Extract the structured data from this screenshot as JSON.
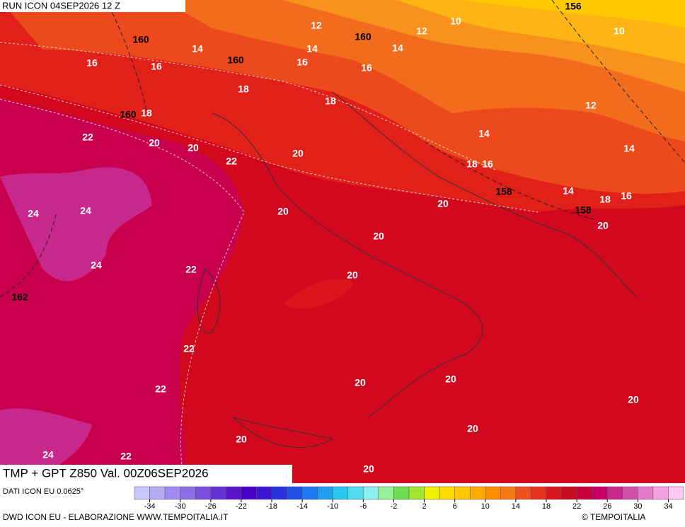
{
  "header": {
    "run": "RUN ICON 04SEP2026 12 Z"
  },
  "map": {
    "isotherm_labels": [
      "12",
      "10",
      "10",
      "12",
      "14",
      "14",
      "14",
      "16",
      "16",
      "16",
      "16",
      "18",
      "18",
      "12",
      "18",
      "14",
      "14",
      "22",
      "20",
      "20",
      "20",
      "22",
      "18",
      "16",
      "14",
      "16",
      "18",
      "20",
      "24",
      "24",
      "20",
      "20",
      "20",
      "24",
      "22",
      "20",
      "22",
      "20",
      "20",
      "22",
      "20",
      "20",
      "20",
      "24",
      "22",
      "20"
    ],
    "isoheight_labels": [
      "160",
      "156",
      "160",
      "160",
      "160",
      "158",
      "158",
      "162"
    ]
  },
  "footer": {
    "title": "TMP + GPT Z850 Val. 00Z06SEP2026",
    "source": "DATI ICON EU 0.0625°",
    "credit": "DWD ICON EU - ELABORAZIONE WWW.TEMPOITALIA.IT",
    "copyright": "© TEMPOITALIA"
  },
  "legend": {
    "ticks": [
      -34,
      -30,
      -26,
      -22,
      -18,
      -14,
      -10,
      -6,
      -2,
      2,
      6,
      10,
      14,
      18,
      22,
      26,
      30,
      34
    ],
    "colors": [
      "#c8c8ff",
      "#b4aaf5",
      "#a08cf0",
      "#8c6ee6",
      "#7850dc",
      "#6432d2",
      "#5a14c8",
      "#4600c8",
      "#3c14d2",
      "#2832dc",
      "#1e50e6",
      "#1e78f0",
      "#1ea0f0",
      "#28c8f0",
      "#50dcf0",
      "#8cf0f0",
      "#96f096",
      "#6edc50",
      "#a0e632",
      "#f0f000",
      "#ffdc00",
      "#ffc800",
      "#ffaa00",
      "#ff8c00",
      "#f87814",
      "#f0501e",
      "#e6321e",
      "#dc141e",
      "#c80a1e",
      "#c8003c",
      "#c80064",
      "#c8288c",
      "#d250aa",
      "#e678c8",
      "#f5a0e1",
      "#ffc8f0"
    ]
  }
}
